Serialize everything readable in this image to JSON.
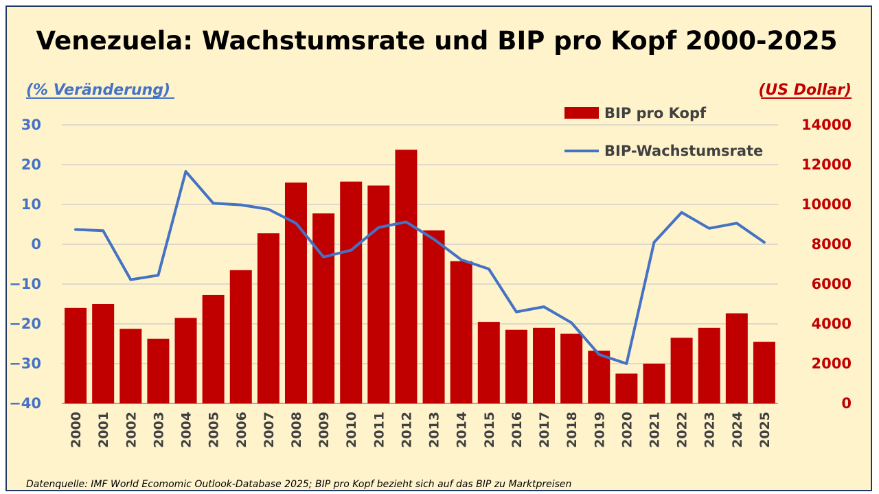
{
  "chart_data": {
    "type": "bar",
    "title": "Venezuela: Wachstumsrate und BIP pro Kopf 2000-2025",
    "left_axis_label": "(% Veränderung)",
    "right_axis_label": "(US Dollar)",
    "categories": [
      "2000",
      "2001",
      "2002",
      "2003",
      "2004",
      "2005",
      "2006",
      "2007",
      "2008",
      "2009",
      "2010",
      "2011",
      "2012",
      "2013",
      "2014",
      "2015",
      "2016",
      "2017",
      "2018",
      "2019",
      "2020",
      "2021",
      "2022",
      "2023",
      "2024",
      "2025"
    ],
    "y_left": {
      "min": -40,
      "max": 30,
      "ticks": [
        30,
        20,
        10,
        0,
        -10,
        -20,
        -30,
        -40
      ]
    },
    "y_right": {
      "min": 0,
      "max": 14000,
      "ticks": [
        14000,
        12000,
        10000,
        8000,
        6000,
        4000,
        2000,
        0
      ]
    },
    "series": [
      {
        "name": "BIP pro Kopf",
        "type": "bar",
        "axis": "right",
        "color": "#c00000",
        "values": [
          4800,
          5000,
          3750,
          3250,
          4300,
          5450,
          6700,
          8550,
          11100,
          9550,
          11150,
          10950,
          12750,
          8700,
          7150,
          4100,
          3700,
          3800,
          3500,
          2650,
          1500,
          2000,
          3300,
          3800,
          4530,
          3100
        ]
      },
      {
        "name": "BIP-Wachstumsrate",
        "type": "line",
        "axis": "left",
        "color": "#4472c4",
        "values": [
          3.7,
          3.4,
          -8.9,
          -7.8,
          18.3,
          10.3,
          9.9,
          8.8,
          5.3,
          -3.2,
          -1.5,
          4.2,
          5.6,
          1.3,
          -3.9,
          -6.2,
          -17.0,
          -15.7,
          -19.7,
          -27.7,
          -30.0,
          0.5,
          8.0,
          4.0,
          5.3,
          0.5
        ]
      }
    ],
    "legend_position": "top-right",
    "grid": true
  },
  "footer": {
    "source": "Datenquelle: IMF World Ecomomic Outlook-Database 2025; BIP pro Kopf bezieht sich auf das BIP zu Marktpreisen"
  }
}
